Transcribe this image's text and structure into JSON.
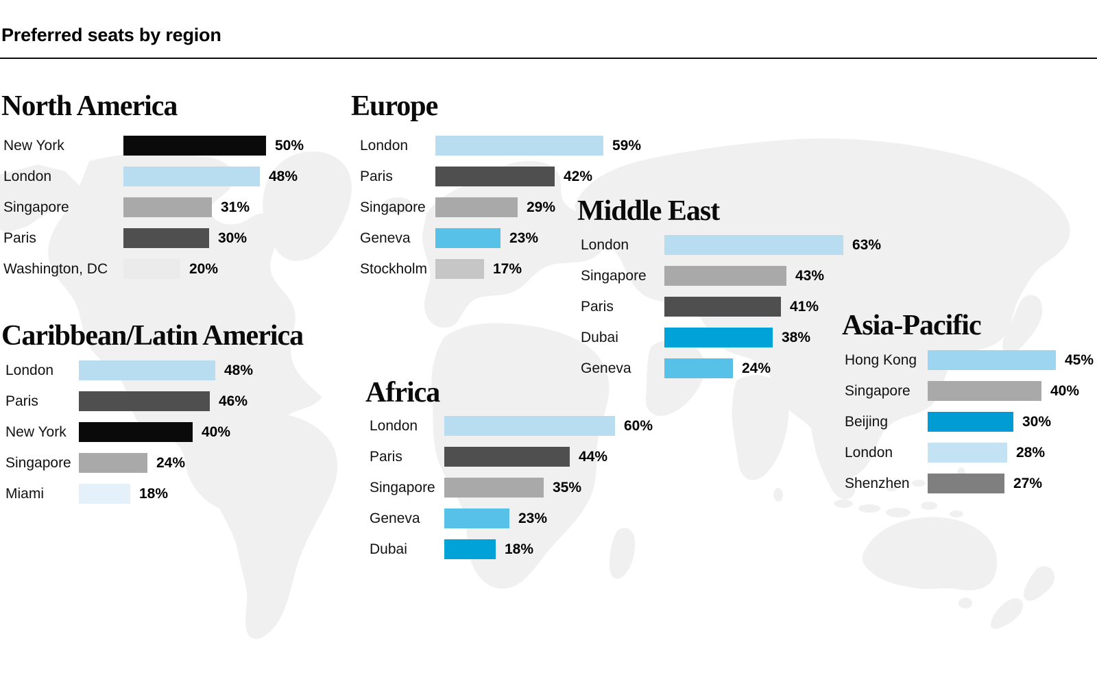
{
  "page": {
    "title": "Preferred seats by region"
  },
  "style": {
    "map_color": "#f0f0f0",
    "divider_color": "#0a0a0a",
    "label_color": "#111111",
    "value_color": "#000000"
  },
  "chart_data": [
    {
      "type": "bar",
      "title": "North America",
      "orientation": "horizontal",
      "unit": "%",
      "value_range": [
        0,
        100
      ],
      "grid": false,
      "legend": false,
      "data_labels": true,
      "categories": [
        "New York",
        "London",
        "Singapore",
        "Paris",
        "Washington, DC"
      ],
      "values": [
        50,
        48,
        31,
        30,
        20
      ],
      "colors": [
        "#0a0a0a",
        "#b8ddf1",
        "#a9a9a9",
        "#4f4f4f",
        "#ebebeb"
      ]
    },
    {
      "type": "bar",
      "title": "Europe",
      "orientation": "horizontal",
      "unit": "%",
      "value_range": [
        0,
        100
      ],
      "grid": false,
      "legend": false,
      "data_labels": true,
      "categories": [
        "London",
        "Paris",
        "Singapore",
        "Geneva",
        "Stockholm"
      ],
      "values": [
        59,
        42,
        29,
        23,
        17
      ],
      "colors": [
        "#b8ddf1",
        "#4f4f4f",
        "#a9a9a9",
        "#58c1e7",
        "#c6c6c6"
      ]
    },
    {
      "type": "bar",
      "title": "Middle East",
      "orientation": "horizontal",
      "unit": "%",
      "value_range": [
        0,
        100
      ],
      "grid": false,
      "legend": false,
      "data_labels": true,
      "categories": [
        "London",
        "Singapore",
        "Paris",
        "Dubai",
        "Geneva"
      ],
      "values": [
        63,
        43,
        41,
        38,
        24
      ],
      "colors": [
        "#b8ddf1",
        "#a9a9a9",
        "#4f4f4f",
        "#00a2d7",
        "#58c1e7"
      ]
    },
    {
      "type": "bar",
      "title": "Caribbean/Latin America",
      "orientation": "horizontal",
      "unit": "%",
      "value_range": [
        0,
        100
      ],
      "grid": false,
      "legend": false,
      "data_labels": true,
      "categories": [
        "London",
        "Paris",
        "New York",
        "Singapore",
        "Miami"
      ],
      "values": [
        48,
        46,
        40,
        24,
        18
      ],
      "colors": [
        "#b8ddf1",
        "#4f4f4f",
        "#0a0a0a",
        "#a9a9a9",
        "#e4f1fb"
      ]
    },
    {
      "type": "bar",
      "title": "Africa",
      "orientation": "horizontal",
      "unit": "%",
      "value_range": [
        0,
        100
      ],
      "grid": false,
      "legend": false,
      "data_labels": true,
      "categories": [
        "London",
        "Paris",
        "Singapore",
        "Geneva",
        "Dubai"
      ],
      "values": [
        60,
        44,
        35,
        23,
        18
      ],
      "colors": [
        "#b8ddf1",
        "#4f4f4f",
        "#a9a9a9",
        "#58c1e7",
        "#00a2d7"
      ]
    },
    {
      "type": "bar",
      "title": "Asia-Pacific",
      "orientation": "horizontal",
      "unit": "%",
      "value_range": [
        0,
        100
      ],
      "grid": false,
      "legend": false,
      "data_labels": true,
      "categories": [
        "Hong Kong",
        "Singapore",
        "Beijing",
        "London",
        "Shenzhen"
      ],
      "values": [
        45,
        40,
        30,
        28,
        27
      ],
      "colors": [
        "#9dd4ef",
        "#a9a9a9",
        "#009cd3",
        "#c3e2f4",
        "#7f7f7f"
      ]
    }
  ]
}
